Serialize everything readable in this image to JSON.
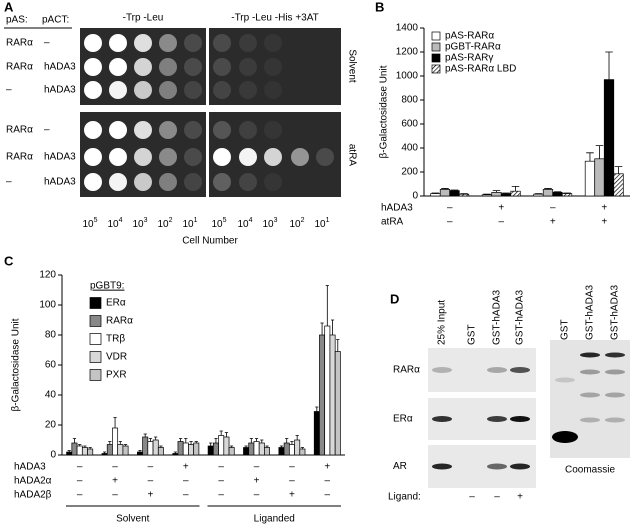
{
  "panel_a": {
    "letter": "A",
    "pas_label": "pAS:",
    "pact_label": "pACT:",
    "columns": [
      "-Trp -Leu",
      "-Trp -Leu -His +3AT"
    ],
    "rows": [
      [
        "RARα",
        "–"
      ],
      [
        "RARα",
        "hADA3"
      ],
      [
        "–",
        "hADA3"
      ],
      [
        "RARα",
        "–"
      ],
      [
        "RARα",
        "hADA3"
      ],
      [
        "–",
        "hADA3"
      ]
    ],
    "conditions": [
      "Solvent",
      "atRA"
    ],
    "dilutions": [
      {
        "base": "10",
        "exp": "5"
      },
      {
        "base": "10",
        "exp": "4"
      },
      {
        "base": "10",
        "exp": "3"
      },
      {
        "base": "10",
        "exp": "2"
      },
      {
        "base": "10",
        "exp": "1"
      }
    ],
    "x_label": "Cell Number"
  },
  "chart_data": [
    {
      "type": "bar",
      "panel_label": "B",
      "y_label": "β-Galactosidase Unit",
      "categories": [
        null,
        null,
        null,
        null
      ],
      "series": [
        {
          "name": "pAS-RARα",
          "color": "#ffffff",
          "values": [
            20,
            10,
            15,
            290
          ],
          "errors": [
            5,
            5,
            5,
            70
          ]
        },
        {
          "name": "pGBT-RARα",
          "color": "#bbbbbb",
          "values": [
            55,
            30,
            55,
            310
          ],
          "errors": [
            8,
            15,
            8,
            110
          ]
        },
        {
          "name": "pAS-RARγ",
          "color": "#000000",
          "values": [
            45,
            20,
            30,
            970
          ],
          "errors": [
            5,
            5,
            5,
            230
          ]
        },
        {
          "name": "pAS-RARα LBD",
          "color": "#888888",
          "pattern": "hatch",
          "values": [
            15,
            40,
            20,
            185
          ],
          "errors": [
            5,
            40,
            5,
            60
          ]
        }
      ],
      "ylim": [
        0,
        1400
      ],
      "yticks": [
        0,
        200,
        400,
        600,
        800,
        1000,
        1200,
        1400
      ],
      "legend": "upper-left",
      "condition_rows": [
        {
          "label": "hADA3",
          "values": [
            "–",
            "+",
            "–",
            "+"
          ]
        },
        {
          "label": "atRA",
          "values": [
            "–",
            "–",
            "+",
            "+"
          ]
        }
      ]
    },
    {
      "type": "bar",
      "panel_label": "C",
      "y_label": "β-Galactosidase Unit",
      "legend_title": "pGBT9:",
      "categories": [
        null,
        null,
        null,
        null,
        null,
        null,
        null,
        null
      ],
      "series": [
        {
          "name": "ERα",
          "color": "#000000",
          "values": [
            2,
            1,
            2,
            1,
            6,
            5,
            5,
            29
          ],
          "errors": [
            1,
            1,
            1,
            1,
            2,
            1,
            1,
            3
          ]
        },
        {
          "name": "RARα",
          "color": "#888888",
          "values": [
            8,
            7,
            12,
            9,
            8,
            8,
            8,
            80
          ],
          "errors": [
            3,
            2,
            2,
            2,
            3,
            3,
            3,
            8
          ]
        },
        {
          "name": "TRβ",
          "color": "#ffffff",
          "values": [
            6,
            18,
            9,
            8,
            13,
            9,
            7,
            86
          ],
          "errors": [
            1,
            7,
            2,
            3,
            3,
            2,
            2,
            27
          ]
        },
        {
          "name": "VDR",
          "color": "#d8d8d8",
          "values": [
            5,
            7,
            10,
            7,
            12,
            8,
            10,
            80
          ],
          "errors": [
            1,
            2,
            2,
            2,
            3,
            2,
            3,
            10
          ]
        },
        {
          "name": "PXR",
          "color": "#c4c4c4",
          "values": [
            4,
            6,
            5,
            8,
            5,
            5,
            4,
            69
          ],
          "errors": [
            1,
            1,
            1,
            1,
            1,
            1,
            1,
            8
          ]
        }
      ],
      "ylim": [
        0,
        120
      ],
      "yticks": [
        0,
        20,
        40,
        60,
        80,
        100,
        120
      ],
      "legend": "upper-left",
      "condition_rows": [
        {
          "label": "hADA3",
          "values": [
            "–",
            "–",
            "–",
            "+",
            "–",
            "–",
            "–",
            "+"
          ]
        },
        {
          "label": "hADA2α",
          "values": [
            "–",
            "+",
            "–",
            "–",
            "–",
            "+",
            "–",
            "–"
          ]
        },
        {
          "label": "hADA2β",
          "values": [
            "–",
            "–",
            "+",
            "–",
            "–",
            "–",
            "+",
            "–"
          ]
        }
      ],
      "group_labels": [
        "Solvent",
        "Liganded"
      ]
    }
  ],
  "panel_d": {
    "letter": "D",
    "lanes": [
      "25% Input",
      "GST",
      "GST-hADA3",
      "GST-hADA3"
    ],
    "coomassie_lanes": [
      "GST",
      "GST-hADA3",
      "GST-hADA3"
    ],
    "proteins": [
      "RARα",
      "ERα",
      "AR"
    ],
    "ligand_label": "Ligand:",
    "ligand": [
      "–",
      "–",
      "+"
    ],
    "stain_label": "Coomassie"
  }
}
